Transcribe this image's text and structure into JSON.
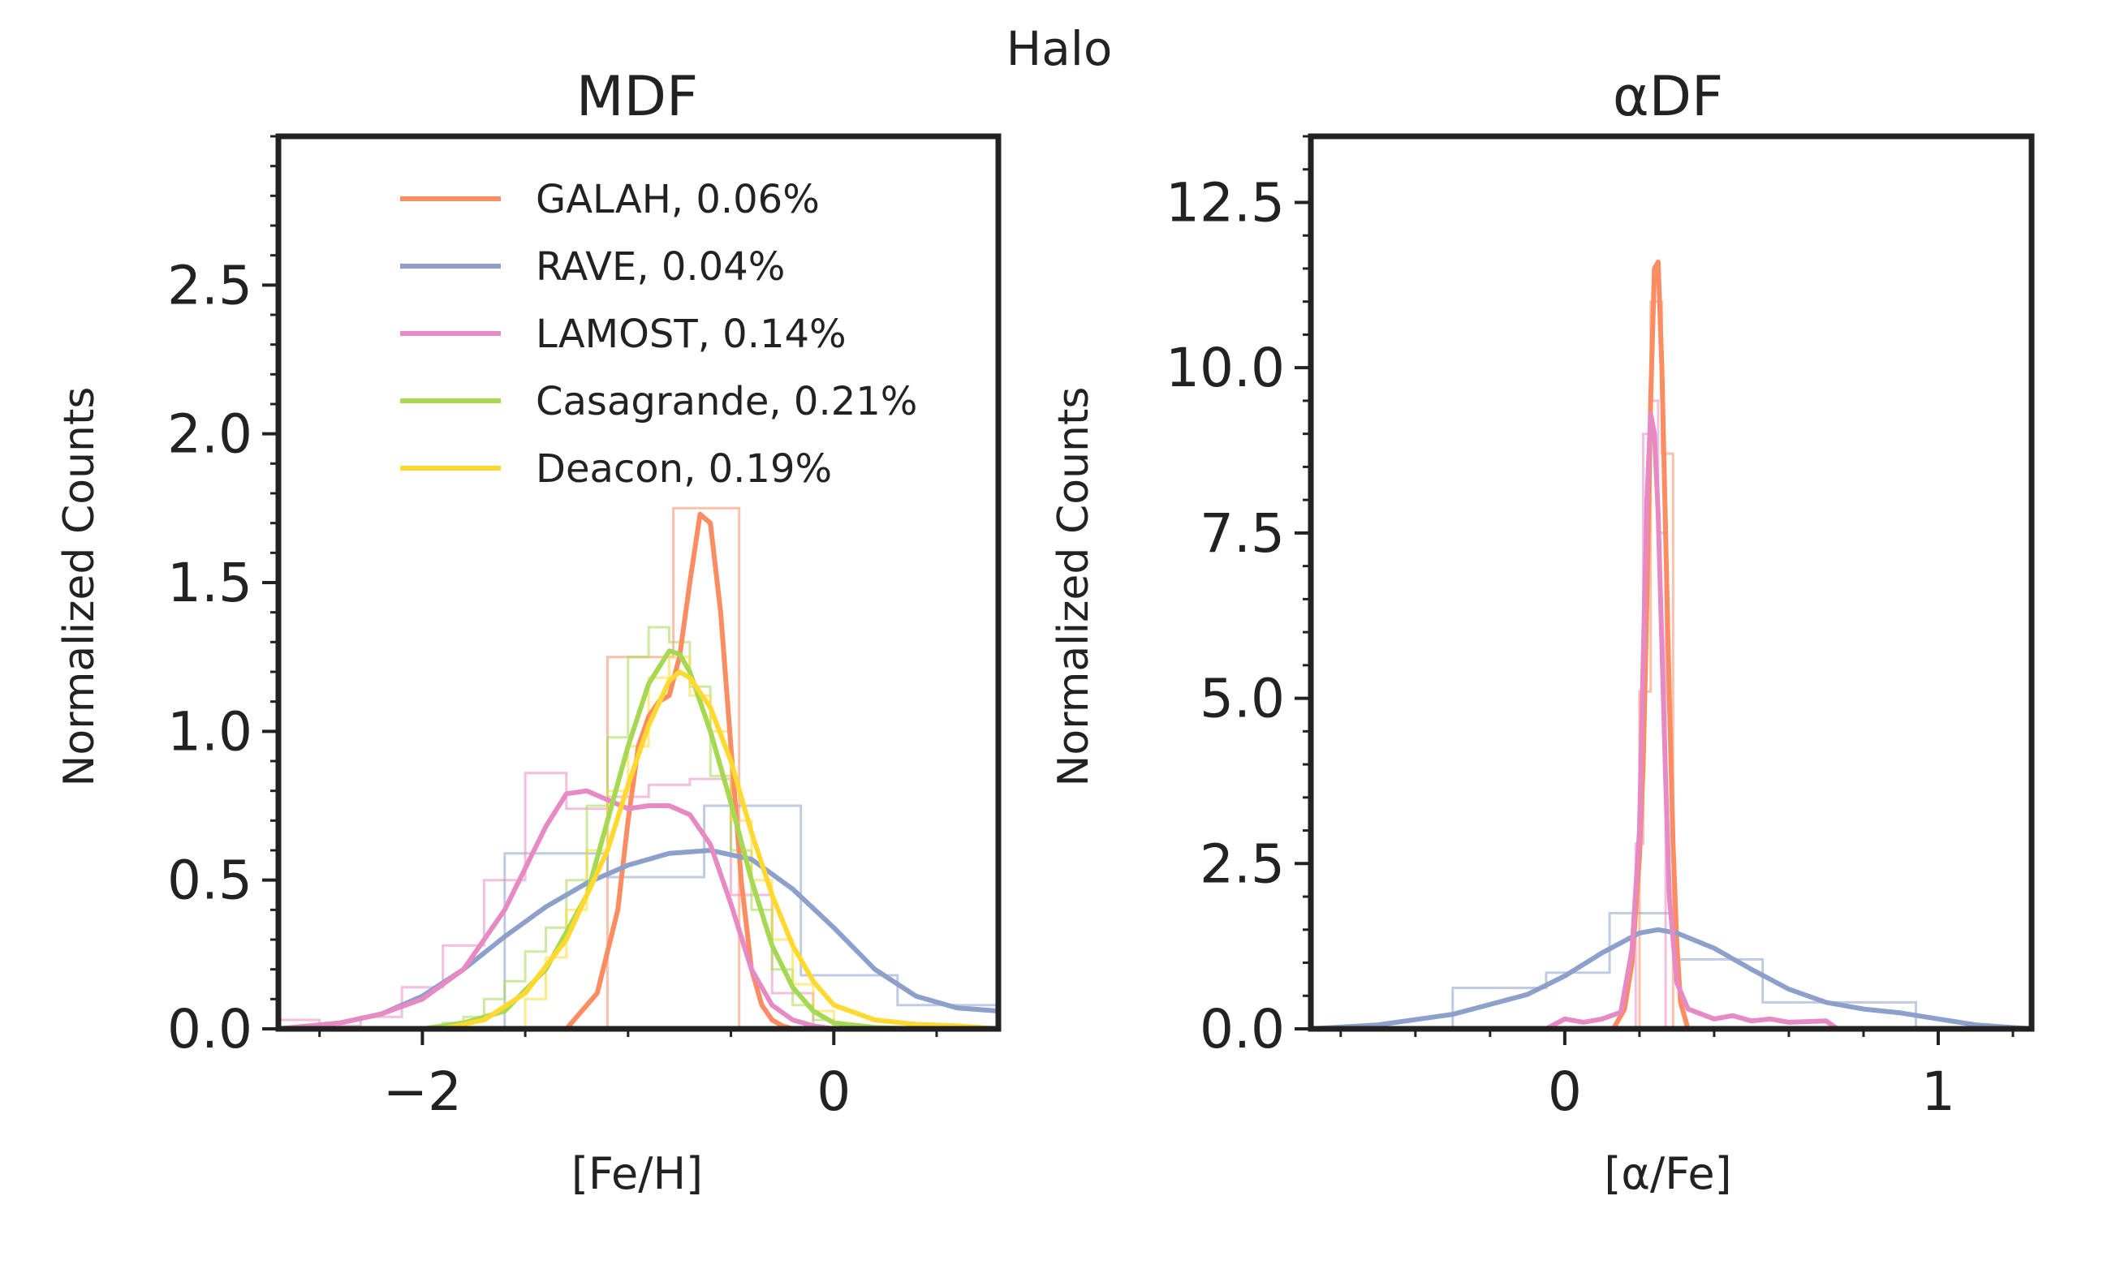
{
  "suptitle": "Halo",
  "colors": {
    "GALAH": "#fc8d62",
    "RAVE": "#8da0cb",
    "LAMOST": "#e78ac3",
    "Casagrande": "#a6d854",
    "Deacon": "#ffd92f",
    "axes": "#222222"
  },
  "chart_data": [
    {
      "type": "line",
      "title": "MDF",
      "xlabel": "[Fe/H]",
      "ylabel": "Normalized Counts",
      "xlim": [
        -2.7,
        0.8
      ],
      "ylim": [
        0.0,
        3.0
      ],
      "xticks": [
        -2,
        0
      ],
      "xtick_labels": [
        "−2",
        "0"
      ],
      "yticks": [
        0.0,
        0.5,
        1.0,
        1.5,
        2.0,
        2.5
      ],
      "ytick_labels": [
        "0.0",
        "0.5",
        "1.0",
        "1.5",
        "2.0",
        "2.5"
      ],
      "legend_position": "top-right",
      "series": [
        {
          "name": "GALAH",
          "label": "GALAH, 0.06%",
          "kde": {
            "x": [
              -1.3,
              -1.15,
              -1.05,
              -1.0,
              -0.95,
              -0.9,
              -0.85,
              -0.8,
              -0.75,
              -0.7,
              -0.65,
              -0.6,
              -0.55,
              -0.5,
              -0.45,
              -0.4,
              -0.35,
              -0.3,
              -0.25,
              -0.2
            ],
            "y": [
              0.0,
              0.12,
              0.4,
              0.7,
              0.95,
              1.05,
              1.1,
              1.12,
              1.25,
              1.5,
              1.73,
              1.7,
              1.4,
              0.95,
              0.5,
              0.2,
              0.08,
              0.03,
              0.01,
              0.0
            ]
          },
          "hist": {
            "edges": [
              -1.1,
              -0.78,
              -0.46,
              -0.14
            ],
            "counts": [
              1.25,
              1.75,
              0.0
            ]
          }
        },
        {
          "name": "RAVE",
          "label": "RAVE, 0.04%",
          "kde": {
            "x": [
              -2.7,
              -2.4,
              -2.2,
              -2.0,
              -1.8,
              -1.6,
              -1.4,
              -1.2,
              -1.0,
              -0.8,
              -0.6,
              -0.4,
              -0.2,
              0.0,
              0.2,
              0.4,
              0.6,
              0.8
            ],
            "y": [
              0.0,
              0.02,
              0.05,
              0.11,
              0.2,
              0.31,
              0.41,
              0.49,
              0.55,
              0.59,
              0.6,
              0.57,
              0.47,
              0.34,
              0.2,
              0.11,
              0.07,
              0.06
            ]
          },
          "hist": {
            "edges": [
              -1.6,
              -1.1,
              -0.63,
              -0.16,
              0.31,
              0.8
            ],
            "counts": [
              0.59,
              0.51,
              0.75,
              0.18,
              0.08
            ]
          }
        },
        {
          "name": "LAMOST",
          "label": "LAMOST, 0.14%",
          "kde": {
            "x": [
              -2.7,
              -2.4,
              -2.2,
              -2.0,
              -1.8,
              -1.6,
              -1.4,
              -1.3,
              -1.2,
              -1.1,
              -1.0,
              -0.9,
              -0.8,
              -0.7,
              -0.6,
              -0.5,
              -0.4,
              -0.3,
              -0.2,
              -0.1,
              0.0,
              0.2,
              0.4
            ],
            "y": [
              0.0,
              0.02,
              0.05,
              0.1,
              0.2,
              0.4,
              0.68,
              0.79,
              0.8,
              0.77,
              0.74,
              0.75,
              0.75,
              0.72,
              0.62,
              0.42,
              0.2,
              0.08,
              0.03,
              0.01,
              0.0,
              0.0,
              0.0
            ]
          },
          "hist": {
            "edges": [
              -2.7,
              -2.5,
              -2.3,
              -2.1,
              -1.9,
              -1.7,
              -1.5,
              -1.3,
              -1.1,
              -0.9,
              -0.7,
              -0.5,
              -0.3,
              -0.1
            ],
            "counts": [
              0.03,
              0.01,
              0.04,
              0.14,
              0.28,
              0.5,
              0.86,
              0.74,
              0.78,
              0.82,
              0.84,
              0.45,
              0.12
            ]
          }
        },
        {
          "name": "Casagrande",
          "label": "Casagrande, 0.21%",
          "kde": {
            "x": [
              -2.0,
              -1.8,
              -1.6,
              -1.4,
              -1.2,
              -1.1,
              -1.0,
              -0.9,
              -0.8,
              -0.75,
              -0.7,
              -0.6,
              -0.5,
              -0.4,
              -0.3,
              -0.2,
              -0.1,
              0.0,
              0.2,
              0.4
            ],
            "y": [
              0.0,
              0.02,
              0.06,
              0.2,
              0.45,
              0.7,
              0.95,
              1.16,
              1.27,
              1.26,
              1.2,
              1.0,
              0.76,
              0.5,
              0.28,
              0.14,
              0.06,
              0.02,
              0.005,
              0.0
            ]
          },
          "hist": {
            "edges": [
              -1.9,
              -1.8,
              -1.7,
              -1.6,
              -1.5,
              -1.4,
              -1.3,
              -1.2,
              -1.1,
              -1.0,
              -0.9,
              -0.8,
              -0.7,
              -0.6,
              -0.5,
              -0.4,
              -0.3,
              -0.2,
              -0.1,
              0.0
            ],
            "counts": [
              0.02,
              0.04,
              0.1,
              0.16,
              0.26,
              0.34,
              0.5,
              0.75,
              0.98,
              1.25,
              1.35,
              1.3,
              1.15,
              0.85,
              0.6,
              0.4,
              0.2,
              0.08,
              0.03
            ]
          }
        },
        {
          "name": "Deacon",
          "label": "Deacon, 0.19%",
          "kde": {
            "x": [
              -1.9,
              -1.7,
              -1.5,
              -1.3,
              -1.1,
              -1.0,
              -0.9,
              -0.8,
              -0.75,
              -0.7,
              -0.6,
              -0.5,
              -0.4,
              -0.3,
              -0.2,
              -0.1,
              0.0,
              0.2,
              0.4,
              0.6,
              0.8
            ],
            "y": [
              0.0,
              0.03,
              0.12,
              0.3,
              0.6,
              0.82,
              1.02,
              1.17,
              1.2,
              1.18,
              1.08,
              0.9,
              0.66,
              0.45,
              0.28,
              0.16,
              0.08,
              0.03,
              0.015,
              0.01,
              0.0
            ]
          },
          "hist": {
            "edges": [
              -1.5,
              -1.4,
              -1.3,
              -1.2,
              -1.1,
              -1.0,
              -0.9,
              -0.8,
              -0.7,
              -0.6,
              -0.5,
              -0.4,
              -0.3,
              -0.2,
              -0.1,
              0.0
            ],
            "counts": [
              0.1,
              0.24,
              0.4,
              0.6,
              0.8,
              0.95,
              1.18,
              1.25,
              1.12,
              1.0,
              0.7,
              0.5,
              0.3,
              0.15,
              0.06
            ]
          }
        }
      ]
    },
    {
      "type": "line",
      "title": "αDF",
      "xlabel": "[α/Fe]",
      "ylabel": "Normalized Counts",
      "xlim": [
        -0.68,
        1.25
      ],
      "ylim": [
        0.0,
        13.5
      ],
      "xticks": [
        0,
        1
      ],
      "xtick_labels": [
        "0",
        "1"
      ],
      "yticks": [
        0.0,
        2.5,
        5.0,
        7.5,
        10.0,
        12.5
      ],
      "ytick_labels": [
        "0.0",
        "2.5",
        "5.0",
        "7.5",
        "10.0",
        "12.5"
      ],
      "series": [
        {
          "name": "GALAH",
          "kde": {
            "x": [
              0.13,
              0.16,
              0.18,
              0.19,
              0.2,
              0.21,
              0.22,
              0.23,
              0.24,
              0.25,
              0.26,
              0.27,
              0.28,
              0.29,
              0.3,
              0.31,
              0.33
            ],
            "y": [
              0.0,
              0.3,
              1.0,
              1.8,
              2.6,
              4.0,
              6.5,
              9.5,
              11.5,
              11.6,
              10.0,
              7.5,
              5.0,
              2.8,
              1.3,
              0.4,
              0.0
            ]
          },
          "hist": {
            "edges": [
              0.17,
              0.2,
              0.23,
              0.26,
              0.29,
              0.31
            ],
            "counts": [
              0.0,
              5.1,
              11.0,
              8.7,
              0.0
            ]
          }
        },
        {
          "name": "RAVE",
          "kde": {
            "x": [
              -0.68,
              -0.5,
              -0.3,
              -0.1,
              0.0,
              0.1,
              0.2,
              0.25,
              0.3,
              0.4,
              0.5,
              0.6,
              0.7,
              0.8,
              0.9,
              1.0,
              1.1,
              1.25
            ],
            "y": [
              0.0,
              0.06,
              0.22,
              0.52,
              0.8,
              1.15,
              1.45,
              1.5,
              1.45,
              1.22,
              0.9,
              0.6,
              0.4,
              0.3,
              0.24,
              0.15,
              0.06,
              0.0
            ]
          },
          "hist": {
            "edges": [
              -0.3,
              -0.05,
              0.12,
              0.3,
              0.53,
              0.94
            ],
            "counts": [
              0.62,
              0.85,
              1.75,
              1.05,
              0.4
            ]
          }
        },
        {
          "name": "LAMOST",
          "kde": {
            "x": [
              -0.05,
              0.0,
              0.05,
              0.1,
              0.15,
              0.18,
              0.2,
              0.21,
              0.22,
              0.23,
              0.24,
              0.25,
              0.26,
              0.27,
              0.28,
              0.3,
              0.33,
              0.4,
              0.45,
              0.5,
              0.55,
              0.6,
              0.7,
              0.73
            ],
            "y": [
              0.0,
              0.15,
              0.1,
              0.15,
              0.25,
              1.2,
              3.0,
              5.6,
              8.0,
              9.3,
              9.0,
              7.8,
              5.8,
              3.8,
              2.0,
              0.7,
              0.3,
              0.15,
              0.2,
              0.12,
              0.15,
              0.1,
              0.12,
              0.0
            ]
          },
          "hist": {
            "edges": [
              0.19,
              0.21,
              0.23,
              0.25,
              0.27
            ],
            "counts": [
              2.8,
              9.0,
              9.5,
              7.5
            ]
          }
        }
      ]
    }
  ]
}
